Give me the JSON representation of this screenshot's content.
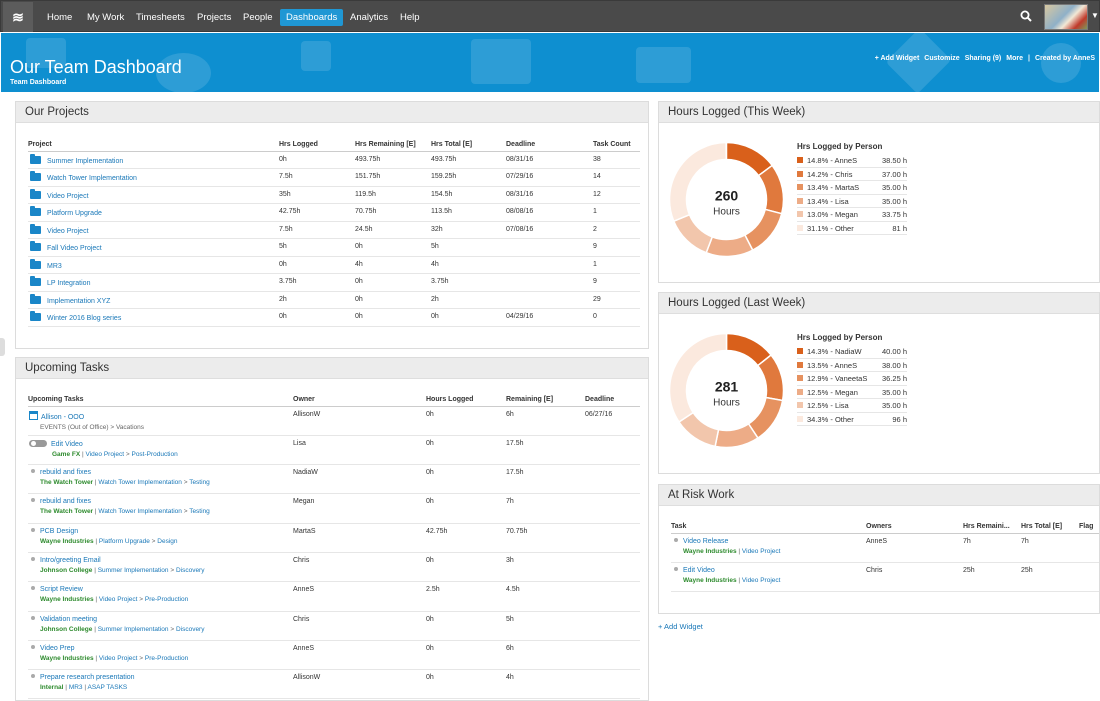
{
  "nav": {
    "logo": "≋",
    "items": [
      "Home",
      "My Work",
      "Timesheets",
      "Projects",
      "People",
      "Dashboards",
      "Analytics",
      "Help"
    ],
    "active": "Dashboards"
  },
  "banner": {
    "title": "Our Team Dashboard",
    "subtitle": "Team Dashboard",
    "actions": [
      "+ Add Widget",
      "Customize",
      "Sharing (9)",
      "More",
      "|",
      "Created by AnneS"
    ]
  },
  "projects": {
    "title": "Our Projects",
    "headers": [
      "Project",
      "Hrs Logged",
      "Hrs Remaining [E]",
      "Hrs Total [E]",
      "Deadline",
      "Task Count"
    ],
    "rows": [
      [
        "Summer Implementation",
        "0h",
        "493.75h",
        "493.75h",
        "08/31/16",
        "38"
      ],
      [
        "Watch Tower Implementation",
        "7.5h",
        "151.75h",
        "159.25h",
        "07/29/16",
        "14"
      ],
      [
        "Video Project",
        "35h",
        "119.5h",
        "154.5h",
        "08/31/16",
        "12"
      ],
      [
        "Platform Upgrade",
        "42.75h",
        "70.75h",
        "113.5h",
        "08/08/16",
        "1"
      ],
      [
        "Video Project",
        "7.5h",
        "24.5h",
        "32h",
        "07/08/16",
        "2"
      ],
      [
        "Fall Video Project",
        "5h",
        "0h",
        "5h",
        "",
        "9"
      ],
      [
        "MR3",
        "0h",
        "4h",
        "4h",
        "",
        "1"
      ],
      [
        "LP Integration",
        "3.75h",
        "0h",
        "3.75h",
        "",
        "9"
      ],
      [
        "Implementation XYZ",
        "2h",
        "0h",
        "2h",
        "",
        "29"
      ],
      [
        "Winter 2016 Blog series",
        "0h",
        "0h",
        "0h",
        "04/29/16",
        "0"
      ]
    ]
  },
  "tasks": {
    "title": "Upcoming Tasks",
    "headers": [
      "Upcoming Tasks",
      "Owner",
      "Hours Logged",
      "Remaining [E]",
      "Deadline"
    ],
    "rows": [
      {
        "name": "Allison - OOO",
        "icon": "calendar-icon",
        "path": [
          "EVENTS (Out of Office)",
          ">",
          "Vacations"
        ],
        "owner": "AllisonW",
        "logged": "0h",
        "remaining": "6h",
        "deadline": "06/27/16"
      },
      {
        "name": "Edit Video",
        "icon": "toggle-icon",
        "path": [
          "Game FX",
          "|",
          "Video Project",
          ">",
          "Post-Production"
        ],
        "owner": "Lisa",
        "logged": "0h",
        "remaining": "17.5h",
        "deadline": ""
      },
      {
        "name": "rebuild and fixes",
        "icon": "bullet-icon",
        "path": [
          "The Watch Tower",
          "|",
          "Watch Tower Implementation",
          ">",
          "Testing"
        ],
        "owner": "NadiaW",
        "logged": "0h",
        "remaining": "17.5h",
        "deadline": ""
      },
      {
        "name": "rebuild and fixes",
        "icon": "bullet-icon",
        "path": [
          "The Watch Tower",
          "|",
          "Watch Tower Implementation",
          ">",
          "Testing"
        ],
        "owner": "Megan",
        "logged": "0h",
        "remaining": "7h",
        "deadline": ""
      },
      {
        "name": "PCB Design",
        "icon": "bullet-icon",
        "path": [
          "Wayne Industries",
          "|",
          "Platform Upgrade",
          ">",
          "Design"
        ],
        "owner": "MartaS",
        "logged": "42.75h",
        "remaining": "70.75h",
        "deadline": ""
      },
      {
        "name": "Intro/greeting Email",
        "icon": "bullet-icon",
        "path": [
          "Johnson College",
          "|",
          "Summer Implementation",
          ">",
          "Discovery"
        ],
        "owner": "Chris",
        "logged": "0h",
        "remaining": "3h",
        "deadline": ""
      },
      {
        "name": "Script Review",
        "icon": "bullet-icon",
        "path": [
          "Wayne Industries",
          "|",
          "Video Project",
          ">",
          "Pre-Production"
        ],
        "owner": "AnneS",
        "logged": "2.5h",
        "remaining": "4.5h",
        "deadline": ""
      },
      {
        "name": "Validation meeting",
        "icon": "bullet-icon",
        "path": [
          "Johnson College",
          "|",
          "Summer Implementation",
          ">",
          "Discovery"
        ],
        "owner": "Chris",
        "logged": "0h",
        "remaining": "5h",
        "deadline": ""
      },
      {
        "name": "Video Prep",
        "icon": "bullet-icon",
        "path": [
          "Wayne Industries",
          "|",
          "Video Project",
          ">",
          "Pre-Production"
        ],
        "owner": "AnneS",
        "logged": "0h",
        "remaining": "6h",
        "deadline": ""
      },
      {
        "name": "Prepare research presentation",
        "icon": "bullet-icon",
        "path": [
          "Internal",
          "|",
          "MR3",
          "|",
          "ASAP TASKS"
        ],
        "owner": "AllisonW",
        "logged": "0h",
        "remaining": "4h",
        "deadline": ""
      }
    ]
  },
  "week": {
    "title": "Hours Logged (This Week)",
    "total": "260",
    "unit": "Hours",
    "legend_title": "Hrs Logged by Person",
    "slices": [
      {
        "pct": "14.8%",
        "name": "AnneS",
        "hours": "38.50 h",
        "frac": 0.148,
        "color": "#d9601b"
      },
      {
        "pct": "14.2%",
        "name": "Chris",
        "hours": "37.00 h",
        "frac": 0.142,
        "color": "#e0793d"
      },
      {
        "pct": "13.4%",
        "name": "MartaS",
        "hours": "35.00 h",
        "frac": 0.134,
        "color": "#e69260"
      },
      {
        "pct": "13.4%",
        "name": "Lisa",
        "hours": "35.00 h",
        "frac": 0.134,
        "color": "#edac87"
      },
      {
        "pct": "13.0%",
        "name": "Megan",
        "hours": "33.75 h",
        "frac": 0.13,
        "color": "#f2c6ac"
      },
      {
        "pct": "31.1%",
        "name": "Other",
        "hours": "81 h",
        "frac": 0.311,
        "color": "#fbe9de"
      }
    ]
  },
  "lastweek": {
    "title": "Hours Logged (Last Week)",
    "total": "281",
    "unit": "Hours",
    "legend_title": "Hrs Logged by Person",
    "slices": [
      {
        "pct": "14.3%",
        "name": "NadiaW",
        "hours": "40.00 h",
        "frac": 0.143,
        "color": "#d9601b"
      },
      {
        "pct": "13.5%",
        "name": "AnneS",
        "hours": "38.00 h",
        "frac": 0.135,
        "color": "#e0793d"
      },
      {
        "pct": "12.9%",
        "name": "VaneetaS",
        "hours": "36.25 h",
        "frac": 0.129,
        "color": "#e69260"
      },
      {
        "pct": "12.5%",
        "name": "Megan",
        "hours": "35.00 h",
        "frac": 0.125,
        "color": "#edac87"
      },
      {
        "pct": "12.5%",
        "name": "Lisa",
        "hours": "35.00 h",
        "frac": 0.125,
        "color": "#f2c6ac"
      },
      {
        "pct": "34.3%",
        "name": "Other",
        "hours": "96 h",
        "frac": 0.343,
        "color": "#fbe9de"
      }
    ]
  },
  "risk": {
    "title": "At Risk Work",
    "headers": [
      "Task",
      "Owners",
      "Hrs Remaini...",
      "Hrs Total [E]",
      "Flag"
    ],
    "rows": [
      {
        "name": "Video Release",
        "path": [
          "Wayne Industries",
          "|",
          "Video Project"
        ],
        "owner": "AnneS",
        "remaining": "7h",
        "total": "7h"
      },
      {
        "name": "Edit Video",
        "path": [
          "Wayne Industries",
          "|",
          "Video Project"
        ],
        "owner": "Chris",
        "remaining": "25h",
        "total": "25h"
      }
    ]
  },
  "add_widget": "+ Add Widget"
}
